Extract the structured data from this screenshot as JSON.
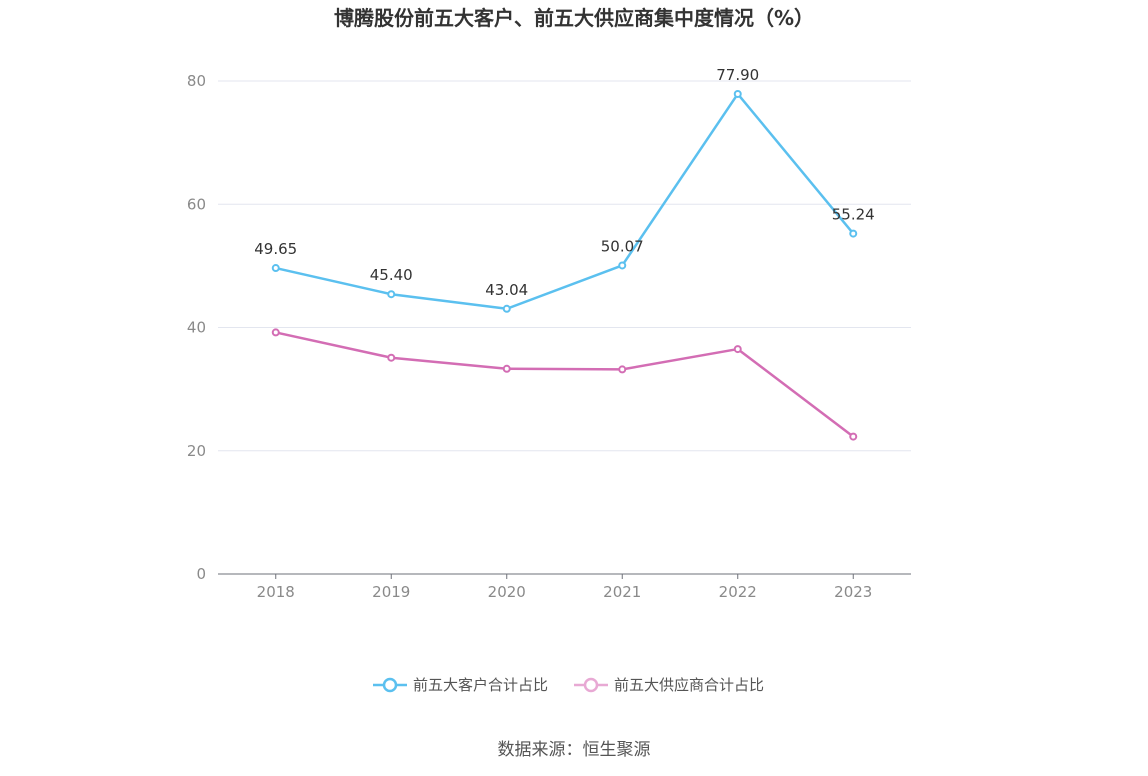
{
  "chart_data": {
    "type": "line",
    "title": "博腾股份前五大客户、前五大供应商集中度情况（%）",
    "categories": [
      "2018",
      "2019",
      "2020",
      "2021",
      "2022",
      "2023"
    ],
    "ylim": [
      0,
      80
    ],
    "yticks": [
      "0",
      "20",
      "40",
      "60",
      "80"
    ],
    "grid": true,
    "legend_position": "bottom",
    "series": [
      {
        "name": "前五大客户合计占比",
        "values": [
          49.65,
          45.4,
          43.04,
          50.07,
          77.9,
          55.24
        ],
        "labels": [
          "49.65",
          "45.40",
          "43.04",
          "50.07",
          "77.90",
          "55.24"
        ],
        "color": "#5bc0ef"
      },
      {
        "name": "前五大供应商合计占比",
        "values": [
          39.2,
          35.1,
          33.3,
          33.2,
          36.5,
          22.3
        ],
        "color": "#d36db4",
        "legend_color": "#e8a9d4"
      }
    ],
    "source": "数据来源：恒生聚源"
  }
}
